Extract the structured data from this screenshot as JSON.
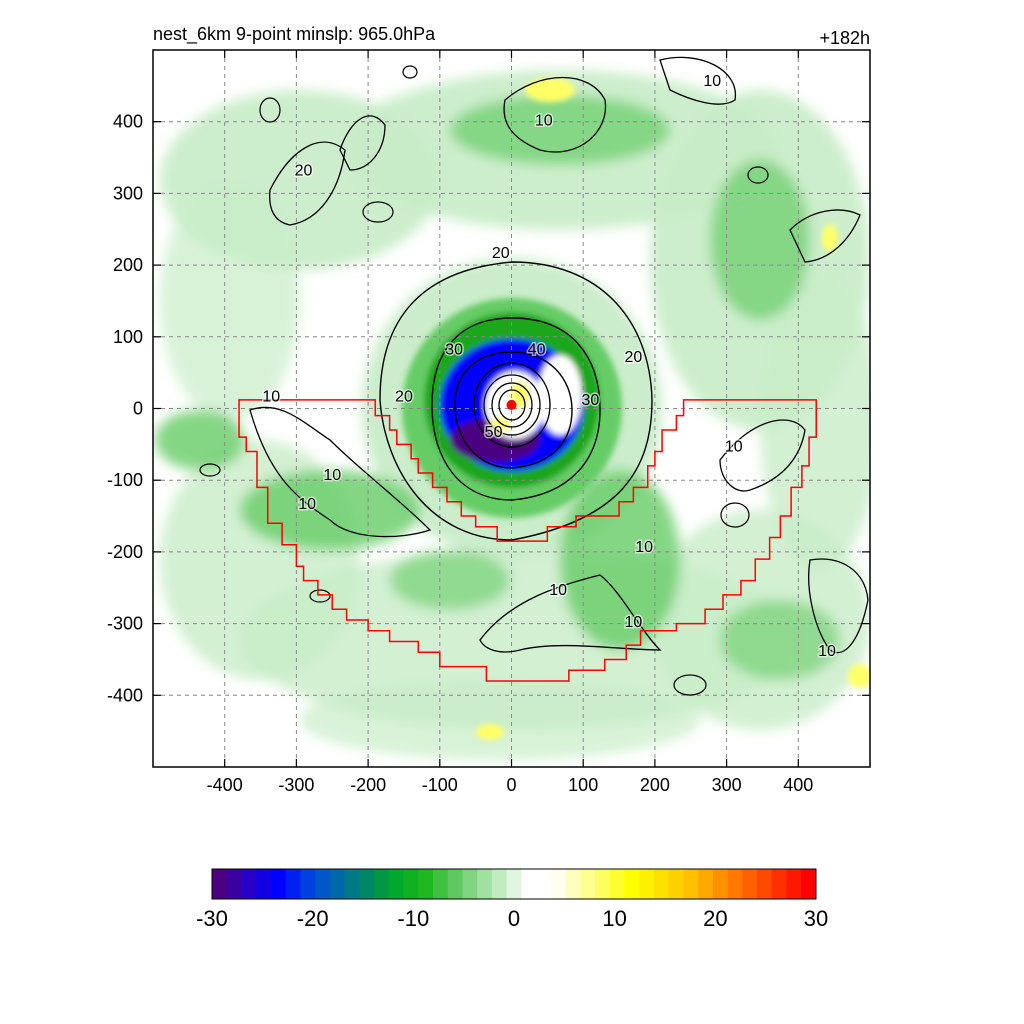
{
  "header": {
    "title": "nest_6km  9-point minslp: 965.0hPa",
    "lead_time": "+182h"
  },
  "chart_data": {
    "type": "heatmap",
    "title": "nest_6km  9-point minslp: 965.0hPa",
    "lead_time": "+182h",
    "xlabel": "",
    "ylabel": "",
    "xlim": [
      -500,
      500
    ],
    "ylim": [
      -500,
      500
    ],
    "x_ticks": [
      -400,
      -300,
      -200,
      -100,
      0,
      100,
      200,
      300,
      400
    ],
    "y_ticks": [
      400,
      300,
      200,
      100,
      0,
      -100,
      -200,
      -300,
      -400
    ],
    "grid": true,
    "contour_labels": [
      {
        "text": "10",
        "x": -335,
        "y": 10
      },
      {
        "text": "10",
        "x": -250,
        "y": -100
      },
      {
        "text": "10",
        "x": -285,
        "y": -140
      },
      {
        "text": "20",
        "x": -290,
        "y": 325
      },
      {
        "text": "20",
        "x": -15,
        "y": 210
      },
      {
        "text": "30",
        "x": -80,
        "y": 75
      },
      {
        "text": "40",
        "x": 35,
        "y": 75
      },
      {
        "text": "20",
        "x": 170,
        "y": 65
      },
      {
        "text": "20",
        "x": -150,
        "y": 10
      },
      {
        "text": "30",
        "x": 110,
        "y": 5
      },
      {
        "text": "50",
        "x": -25,
        "y": -40
      },
      {
        "text": "10",
        "x": 45,
        "y": 395
      },
      {
        "text": "10",
        "x": 280,
        "y": 450
      },
      {
        "text": "10",
        "x": 310,
        "y": -60
      },
      {
        "text": "10",
        "x": 185,
        "y": -200
      },
      {
        "text": "10",
        "x": 65,
        "y": -260
      },
      {
        "text": "10",
        "x": 170,
        "y": -305
      },
      {
        "text": "10",
        "x": 440,
        "y": -345
      }
    ],
    "center": {
      "x": 0,
      "y": 5
    },
    "boundary": [
      [
        -380,
        12
      ],
      [
        -190,
        12
      ],
      [
        -190,
        -10
      ],
      [
        -170,
        -10
      ],
      [
        -170,
        -30
      ],
      [
        -160,
        -30
      ],
      [
        -160,
        -50
      ],
      [
        -140,
        -50
      ],
      [
        -140,
        -70
      ],
      [
        -130,
        -70
      ],
      [
        -130,
        -90
      ],
      [
        -110,
        -90
      ],
      [
        -110,
        -110
      ],
      [
        -90,
        -110
      ],
      [
        -90,
        -130
      ],
      [
        -70,
        -130
      ],
      [
        -70,
        -150
      ],
      [
        -50,
        -150
      ],
      [
        -50,
        -165
      ],
      [
        -20,
        -165
      ],
      [
        -20,
        -185
      ],
      [
        50,
        -185
      ],
      [
        50,
        -165
      ],
      [
        90,
        -165
      ],
      [
        90,
        -150
      ],
      [
        150,
        -150
      ],
      [
        150,
        -130
      ],
      [
        170,
        -130
      ],
      [
        170,
        -110
      ],
      [
        190,
        -110
      ],
      [
        190,
        -80
      ],
      [
        200,
        -80
      ],
      [
        200,
        -60
      ],
      [
        210,
        -60
      ],
      [
        210,
        -30
      ],
      [
        230,
        -30
      ],
      [
        230,
        -10
      ],
      [
        240,
        -10
      ],
      [
        240,
        12
      ],
      [
        425,
        12
      ],
      [
        425,
        -40
      ],
      [
        415,
        -40
      ],
      [
        415,
        -80
      ],
      [
        405,
        -80
      ],
      [
        405,
        -110
      ],
      [
        390,
        -110
      ],
      [
        390,
        -150
      ],
      [
        375,
        -150
      ],
      [
        375,
        -180
      ],
      [
        360,
        -180
      ],
      [
        360,
        -210
      ],
      [
        340,
        -210
      ],
      [
        340,
        -240
      ],
      [
        320,
        -240
      ],
      [
        320,
        -260
      ],
      [
        295,
        -260
      ],
      [
        295,
        -280
      ],
      [
        270,
        -280
      ],
      [
        270,
        -300
      ],
      [
        230,
        -300
      ],
      [
        230,
        -310
      ],
      [
        180,
        -310
      ],
      [
        180,
        -330
      ],
      [
        160,
        -330
      ],
      [
        160,
        -350
      ],
      [
        130,
        -350
      ],
      [
        130,
        -365
      ],
      [
        80,
        -365
      ],
      [
        80,
        -380
      ],
      [
        -35,
        -380
      ],
      [
        -35,
        -360
      ],
      [
        -100,
        -360
      ],
      [
        -100,
        -340
      ],
      [
        -130,
        -340
      ],
      [
        -130,
        -325
      ],
      [
        -170,
        -325
      ],
      [
        -170,
        -310
      ],
      [
        -200,
        -310
      ],
      [
        -200,
        -295
      ],
      [
        -230,
        -295
      ],
      [
        -230,
        -280
      ],
      [
        -250,
        -280
      ],
      [
        -250,
        -260
      ],
      [
        -270,
        -260
      ],
      [
        -270,
        -240
      ],
      [
        -290,
        -240
      ],
      [
        -290,
        -220
      ],
      [
        -300,
        -220
      ],
      [
        -300,
        -190
      ],
      [
        -320,
        -190
      ],
      [
        -320,
        -160
      ],
      [
        -340,
        -160
      ],
      [
        -340,
        -110
      ],
      [
        -355,
        -110
      ],
      [
        -355,
        -60
      ],
      [
        -370,
        -60
      ],
      [
        -370,
        -40
      ],
      [
        -380,
        -40
      ],
      [
        -380,
        12
      ]
    ]
  },
  "colorbar": {
    "min": -30,
    "max": 30,
    "labels": [
      "-30",
      "-20",
      "-10",
      "0",
      "10",
      "20",
      "30"
    ],
    "colors": [
      "#4b0082",
      "#3a00a0",
      "#2800c8",
      "#1500e6",
      "#0000ff",
      "#0020f0",
      "#0040e0",
      "#0058c8",
      "#0068a8",
      "#007888",
      "#008866",
      "#009844",
      "#00a830",
      "#10b020",
      "#20b820",
      "#40c040",
      "#60c860",
      "#80d480",
      "#a0e0a0",
      "#c0ecc0",
      "#e0f6e0",
      "#ffffff",
      "#ffffff",
      "#fffff0",
      "#ffffc0",
      "#ffff90",
      "#ffff60",
      "#ffff30",
      "#ffff00",
      "#fff000",
      "#ffe000",
      "#ffd000",
      "#ffc000",
      "#ffa800",
      "#ff9000",
      "#ff7800",
      "#ff6000",
      "#ff4800",
      "#ff3000",
      "#ff1800",
      "#ff0000"
    ]
  },
  "colors": {
    "boundary": "#ff0000",
    "center_marker": "#ff0000",
    "green_light": "#c8ecc8",
    "green_mid": "#66cc66",
    "green_dark": "#1ea61e",
    "blue": "#1a1ae6",
    "purple": "#4b0082",
    "yellow": "#ffff66"
  }
}
